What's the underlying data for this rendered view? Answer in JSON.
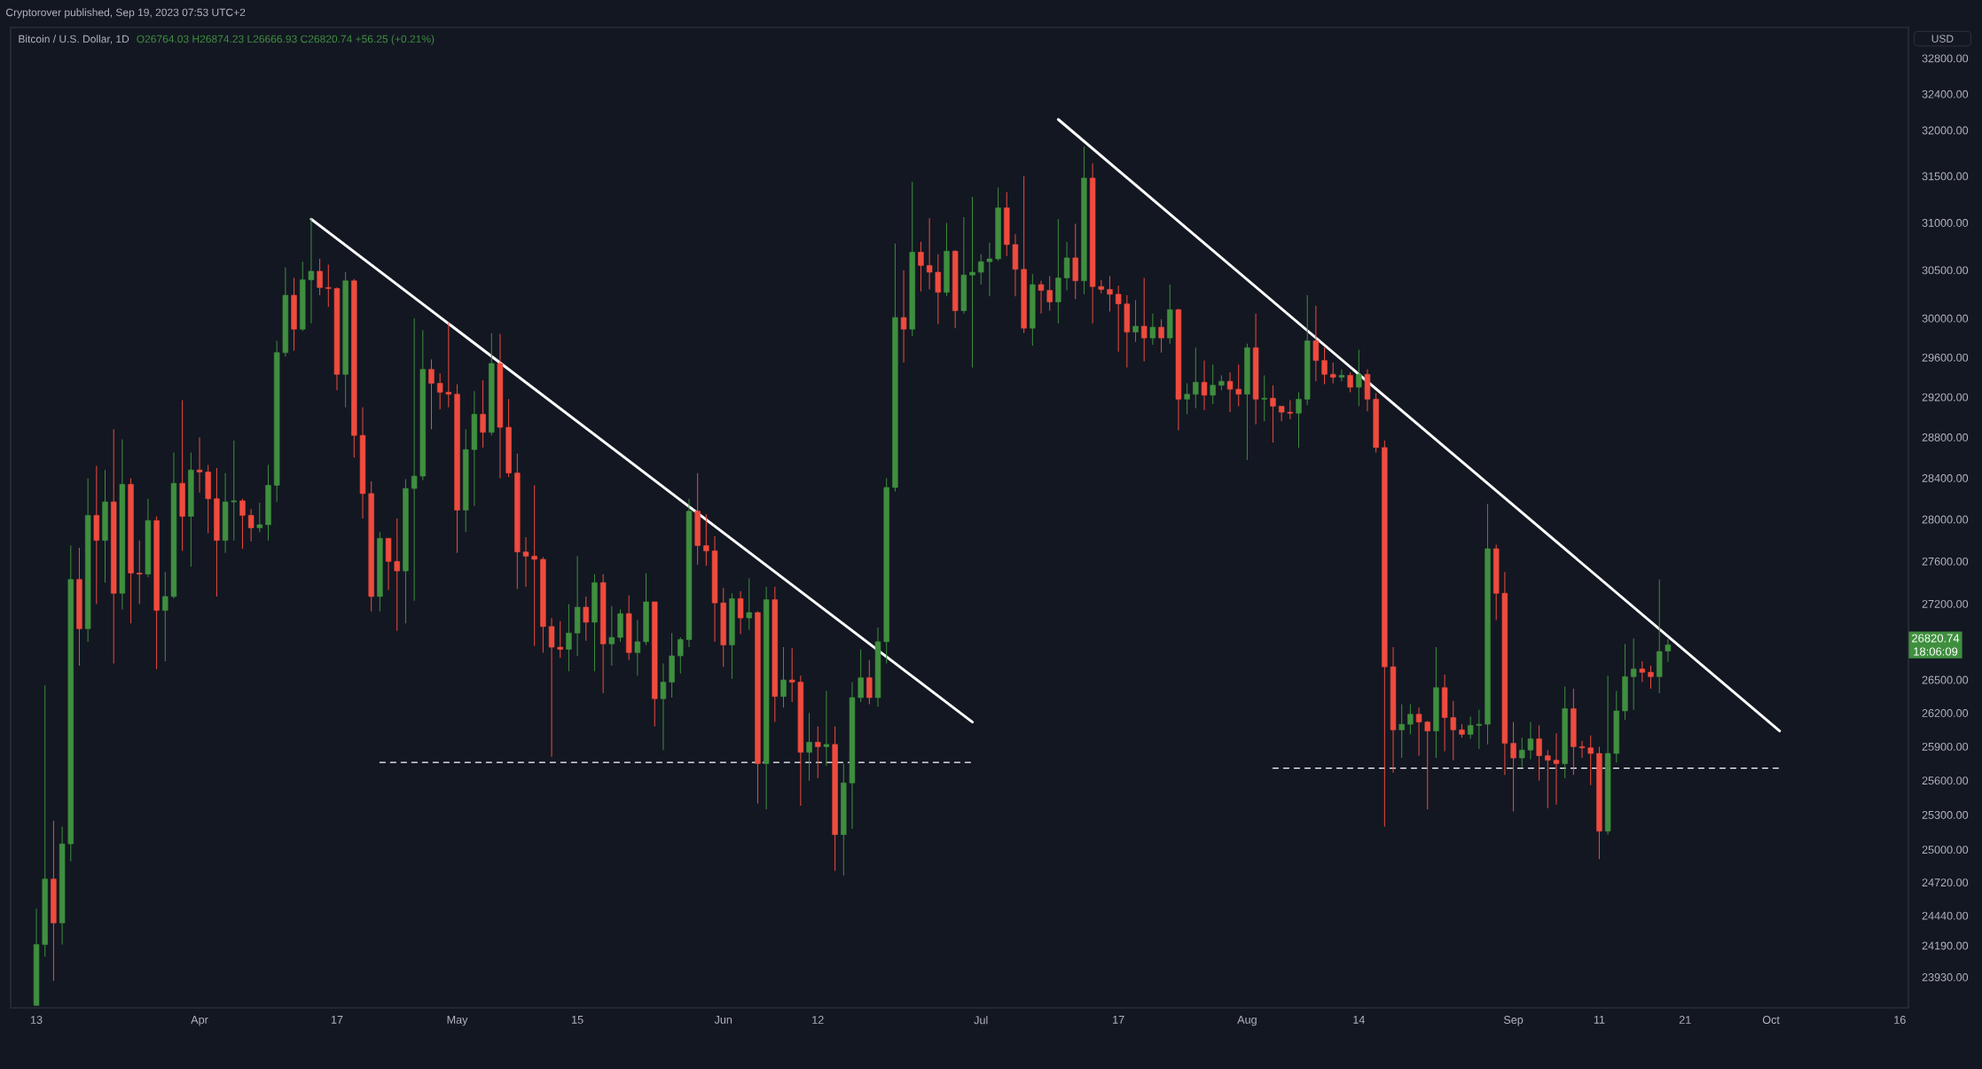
{
  "chart_data": {
    "type": "candlestick",
    "title": "Bitcoin / U.S. Dollar, 1D",
    "subtitle": "O26764.03 H26874.23 L26666.93 C26820.74 +56.25 (+0.21%)",
    "ylabel": "USD",
    "annotations": [
      "Cryptorover published, Sep 19, 2023 07:53 UTC+2",
      "26820.74",
      "18:06:09"
    ],
    "log": "y",
    "xlim": [
      "2023-03-10",
      "2023-10-17"
    ],
    "xticks": [
      {
        "value": "2023-03-13",
        "label": "13"
      },
      {
        "value": "2023-04-01",
        "label": "Apr"
      },
      {
        "value": "2023-04-17",
        "label": "17"
      },
      {
        "value": "2023-05-01",
        "label": "May"
      },
      {
        "value": "2023-05-15",
        "label": "15"
      },
      {
        "value": "2023-06-01",
        "label": "Jun"
      },
      {
        "value": "2023-06-12",
        "label": "12"
      },
      {
        "value": "2023-07-01",
        "label": "Jul"
      },
      {
        "value": "2023-07-17",
        "label": "17"
      },
      {
        "value": "2023-08-01",
        "label": "Aug"
      },
      {
        "value": "2023-08-14",
        "label": "14"
      },
      {
        "value": "2023-09-01",
        "label": "Sep"
      },
      {
        "value": "2023-09-11",
        "label": "11"
      },
      {
        "value": "2023-09-21",
        "label": "21"
      },
      {
        "value": "2023-10-01",
        "label": "Oct"
      },
      {
        "value": "2023-10-16",
        "label": "16"
      }
    ],
    "ylim": [
      23680,
      33150
    ],
    "yticks": [
      {
        "value": 23930,
        "label": "23930.00"
      },
      {
        "value": 24190,
        "label": "24190.00"
      },
      {
        "value": 24440,
        "label": "24440.00"
      },
      {
        "value": 24720,
        "label": "24720.00"
      },
      {
        "value": 25000,
        "label": "25000.00"
      },
      {
        "value": 25300,
        "label": "25300.00"
      },
      {
        "value": 25600,
        "label": "25600.00"
      },
      {
        "value": 25900,
        "label": "25900.00"
      },
      {
        "value": 26200,
        "label": "26200.00"
      },
      {
        "value": 26500,
        "label": "26500.00"
      },
      {
        "value": 27200,
        "label": "27200.00"
      },
      {
        "value": 27600,
        "label": "27600.00"
      },
      {
        "value": 28000,
        "label": "28000.00"
      },
      {
        "value": 28400,
        "label": "28400.00"
      },
      {
        "value": 28800,
        "label": "28800.00"
      },
      {
        "value": 29200,
        "label": "29200.00"
      },
      {
        "value": 29600,
        "label": "29600.00"
      },
      {
        "value": 30000,
        "label": "30000.00"
      },
      {
        "value": 30500,
        "label": "30500.00"
      },
      {
        "value": 31000,
        "label": "31000.00"
      },
      {
        "value": 31500,
        "label": "31500.00"
      },
      {
        "value": 32000,
        "label": "32000.00"
      },
      {
        "value": 32400,
        "label": "32400.00"
      },
      {
        "value": 32800,
        "label": "32800.00"
      }
    ],
    "x": [
      "2023-03-13",
      "2023-03-14",
      "2023-03-15",
      "2023-03-16",
      "2023-03-17",
      "2023-03-18",
      "2023-03-19",
      "2023-03-20",
      "2023-03-21",
      "2023-03-22",
      "2023-03-23",
      "2023-03-24",
      "2023-03-25",
      "2023-03-26",
      "2023-03-27",
      "2023-03-28",
      "2023-03-29",
      "2023-03-30",
      "2023-03-31",
      "2023-04-01",
      "2023-04-02",
      "2023-04-03",
      "2023-04-04",
      "2023-04-05",
      "2023-04-06",
      "2023-04-07",
      "2023-04-08",
      "2023-04-09",
      "2023-04-10",
      "2023-04-11",
      "2023-04-12",
      "2023-04-13",
      "2023-04-14",
      "2023-04-15",
      "2023-04-16",
      "2023-04-17",
      "2023-04-18",
      "2023-04-19",
      "2023-04-20",
      "2023-04-21",
      "2023-04-22",
      "2023-04-23",
      "2023-04-24",
      "2023-04-25",
      "2023-04-26",
      "2023-04-27",
      "2023-04-28",
      "2023-04-29",
      "2023-04-30",
      "2023-05-01",
      "2023-05-02",
      "2023-05-03",
      "2023-05-04",
      "2023-05-05",
      "2023-05-06",
      "2023-05-07",
      "2023-05-08",
      "2023-05-09",
      "2023-05-10",
      "2023-05-11",
      "2023-05-12",
      "2023-05-13",
      "2023-05-14",
      "2023-05-15",
      "2023-05-16",
      "2023-05-17",
      "2023-05-18",
      "2023-05-19",
      "2023-05-20",
      "2023-05-21",
      "2023-05-22",
      "2023-05-23",
      "2023-05-24",
      "2023-05-25",
      "2023-05-26",
      "2023-05-27",
      "2023-05-28",
      "2023-05-29",
      "2023-05-30",
      "2023-05-31",
      "2023-06-01",
      "2023-06-02",
      "2023-06-03",
      "2023-06-04",
      "2023-06-05",
      "2023-06-06",
      "2023-06-07",
      "2023-06-08",
      "2023-06-09",
      "2023-06-10",
      "2023-06-11",
      "2023-06-12",
      "2023-06-13",
      "2023-06-14",
      "2023-06-15",
      "2023-06-16",
      "2023-06-17",
      "2023-06-18",
      "2023-06-19",
      "2023-06-20",
      "2023-06-21",
      "2023-06-22",
      "2023-06-23",
      "2023-06-24",
      "2023-06-25",
      "2023-06-26",
      "2023-06-27",
      "2023-06-28",
      "2023-06-29",
      "2023-06-30",
      "2023-07-01",
      "2023-07-02",
      "2023-07-03",
      "2023-07-04",
      "2023-07-05",
      "2023-07-06",
      "2023-07-07",
      "2023-07-08",
      "2023-07-09",
      "2023-07-10",
      "2023-07-11",
      "2023-07-12",
      "2023-07-13",
      "2023-07-14",
      "2023-07-15",
      "2023-07-16",
      "2023-07-17",
      "2023-07-18",
      "2023-07-19",
      "2023-07-20",
      "2023-07-21",
      "2023-07-22",
      "2023-07-23",
      "2023-07-24",
      "2023-07-25",
      "2023-07-26",
      "2023-07-27",
      "2023-07-28",
      "2023-07-29",
      "2023-07-30",
      "2023-07-31",
      "2023-08-01",
      "2023-08-02",
      "2023-08-03",
      "2023-08-04",
      "2023-08-05",
      "2023-08-06",
      "2023-08-07",
      "2023-08-08",
      "2023-08-09",
      "2023-08-10",
      "2023-08-11",
      "2023-08-12",
      "2023-08-13",
      "2023-08-14",
      "2023-08-15",
      "2023-08-16",
      "2023-08-17",
      "2023-08-18",
      "2023-08-19",
      "2023-08-20",
      "2023-08-21",
      "2023-08-22",
      "2023-08-23",
      "2023-08-24",
      "2023-08-25",
      "2023-08-26",
      "2023-08-27",
      "2023-08-28",
      "2023-08-29",
      "2023-08-30",
      "2023-08-31",
      "2023-09-01",
      "2023-09-02",
      "2023-09-03",
      "2023-09-04",
      "2023-09-05",
      "2023-09-06",
      "2023-09-07",
      "2023-09-08",
      "2023-09-09",
      "2023-09-10",
      "2023-09-11",
      "2023-09-12",
      "2023-09-13",
      "2023-09-14",
      "2023-09-15",
      "2023-09-16",
      "2023-09-17",
      "2023-09-18",
      "2023-09-19"
    ],
    "ohlc": [
      [
        23700,
        24500,
        23700,
        24200
      ],
      [
        24200,
        26450,
        24100,
        24750
      ],
      [
        24750,
        25250,
        23900,
        24380
      ],
      [
        24380,
        25200,
        24200,
        25050
      ],
      [
        25050,
        27750,
        24900,
        27430
      ],
      [
        27430,
        27730,
        26630,
        26970
      ],
      [
        26970,
        28400,
        26850,
        28040
      ],
      [
        28040,
        28520,
        27200,
        27800
      ],
      [
        27800,
        28480,
        27400,
        28170
      ],
      [
        28170,
        28880,
        26650,
        27300
      ],
      [
        27300,
        28780,
        27150,
        28340
      ],
      [
        28340,
        28400,
        27020,
        27490
      ],
      [
        27490,
        27800,
        27200,
        27480
      ],
      [
        27480,
        28200,
        27450,
        27990
      ],
      [
        27990,
        28030,
        26600,
        27140
      ],
      [
        27140,
        27500,
        26670,
        27270
      ],
      [
        27270,
        28650,
        27250,
        28350
      ],
      [
        28350,
        29170,
        27700,
        28030
      ],
      [
        28030,
        28650,
        27550,
        28480
      ],
      [
        28480,
        28800,
        28260,
        28460
      ],
      [
        28460,
        28530,
        27870,
        28200
      ],
      [
        28200,
        28500,
        27270,
        27800
      ],
      [
        27800,
        28450,
        27680,
        28170
      ],
      [
        28170,
        28770,
        27800,
        28180
      ],
      [
        28180,
        28200,
        27720,
        28040
      ],
      [
        28040,
        28100,
        27790,
        27920
      ],
      [
        27920,
        28160,
        27880,
        27950
      ],
      [
        27950,
        28530,
        27800,
        28330
      ],
      [
        28330,
        29770,
        28170,
        29650
      ],
      [
        29650,
        30530,
        29610,
        30240
      ],
      [
        30240,
        30420,
        29670,
        29890
      ],
      [
        29890,
        30590,
        29870,
        30400
      ],
      [
        30400,
        31050,
        29950,
        30490
      ],
      [
        30490,
        30620,
        30240,
        30320
      ],
      [
        30320,
        30560,
        30120,
        30310
      ],
      [
        30310,
        30320,
        29270,
        29430
      ],
      [
        29430,
        30480,
        29100,
        30390
      ],
      [
        30390,
        30410,
        28600,
        28820
      ],
      [
        28820,
        29100,
        28010,
        28250
      ],
      [
        28250,
        28370,
        27130,
        27270
      ],
      [
        27270,
        27880,
        27130,
        27820
      ],
      [
        27820,
        27820,
        27330,
        27600
      ],
      [
        27600,
        28010,
        26950,
        27510
      ],
      [
        27510,
        28390,
        27020,
        28300
      ],
      [
        28300,
        30000,
        27230,
        28420
      ],
      [
        28420,
        29880,
        28380,
        29480
      ],
      [
        29480,
        29580,
        28880,
        29340
      ],
      [
        29340,
        29440,
        29080,
        29250
      ],
      [
        29250,
        29960,
        29100,
        29230
      ],
      [
        29230,
        29330,
        27680,
        28090
      ],
      [
        28090,
        28880,
        27880,
        28680
      ],
      [
        28680,
        29260,
        28130,
        29030
      ],
      [
        29030,
        29370,
        28700,
        28850
      ],
      [
        28850,
        29850,
        28820,
        29540
      ],
      [
        29540,
        29840,
        28400,
        28900
      ],
      [
        28900,
        29180,
        28410,
        28450
      ],
      [
        28450,
        28640,
        27340,
        27690
      ],
      [
        27690,
        27830,
        27360,
        27650
      ],
      [
        27650,
        28330,
        26810,
        27620
      ],
      [
        27620,
        27640,
        26750,
        26990
      ],
      [
        26990,
        27070,
        25810,
        26800
      ],
      [
        26800,
        27040,
        26700,
        26780
      ],
      [
        26780,
        27200,
        26580,
        26930
      ],
      [
        26930,
        27650,
        26720,
        27170
      ],
      [
        27170,
        27270,
        26860,
        27030
      ],
      [
        27030,
        27480,
        26580,
        27400
      ],
      [
        27400,
        27480,
        26380,
        26830
      ],
      [
        26830,
        27180,
        26630,
        26890
      ],
      [
        26890,
        27150,
        26850,
        27110
      ],
      [
        27110,
        27280,
        26680,
        26750
      ],
      [
        26750,
        27050,
        26540,
        26850
      ],
      [
        26850,
        27490,
        26820,
        27220
      ],
      [
        27220,
        27220,
        26080,
        26330
      ],
      [
        26330,
        26650,
        25870,
        26480
      ],
      [
        26480,
        26930,
        26340,
        26720
      ],
      [
        26720,
        26890,
        26560,
        26870
      ],
      [
        26870,
        28200,
        26800,
        28080
      ],
      [
        28080,
        28450,
        27570,
        27750
      ],
      [
        27750,
        28050,
        27560,
        27700
      ],
      [
        27700,
        27840,
        26850,
        27210
      ],
      [
        27210,
        27350,
        26620,
        26820
      ],
      [
        26820,
        27300,
        26510,
        27250
      ],
      [
        27250,
        27320,
        26920,
        27070
      ],
      [
        27070,
        27440,
        26960,
        27120
      ],
      [
        27120,
        27130,
        25400,
        25750
      ],
      [
        25750,
        27360,
        25350,
        27240
      ],
      [
        27240,
        27360,
        26120,
        26350
      ],
      [
        26350,
        26800,
        26250,
        26500
      ],
      [
        26500,
        26790,
        26300,
        26480
      ],
      [
        26480,
        26540,
        25380,
        25850
      ],
      [
        25850,
        26200,
        25600,
        25940
      ],
      [
        25940,
        26080,
        25620,
        25900
      ],
      [
        25900,
        26400,
        25730,
        25920
      ],
      [
        25920,
        26080,
        24820,
        25130
      ],
      [
        25130,
        25750,
        24780,
        25580
      ],
      [
        25580,
        26480,
        25180,
        26340
      ],
      [
        26340,
        26780,
        26300,
        26520
      ],
      [
        26520,
        26680,
        26280,
        26340
      ],
      [
        26340,
        26980,
        26260,
        26850
      ],
      [
        26850,
        28400,
        26650,
        28310
      ],
      [
        28310,
        30780,
        28270,
        30010
      ],
      [
        30010,
        30500,
        29550,
        29890
      ],
      [
        29890,
        31440,
        29820,
        30690
      ],
      [
        30690,
        30800,
        30280,
        30550
      ],
      [
        30550,
        31050,
        30300,
        30480
      ],
      [
        30480,
        30670,
        29940,
        30270
      ],
      [
        30270,
        31000,
        30230,
        30700
      ],
      [
        30700,
        30710,
        29900,
        30080
      ],
      [
        30080,
        31060,
        30050,
        30450
      ],
      [
        30450,
        31280,
        29500,
        30480
      ],
      [
        30480,
        30670,
        30350,
        30590
      ],
      [
        30590,
        30790,
        30230,
        30620
      ],
      [
        30620,
        31380,
        30600,
        31160
      ],
      [
        31160,
        31330,
        30650,
        30770
      ],
      [
        30770,
        30880,
        30230,
        30510
      ],
      [
        30510,
        31500,
        29850,
        29900
      ],
      [
        29900,
        30460,
        29720,
        30350
      ],
      [
        30350,
        30390,
        30050,
        30290
      ],
      [
        30290,
        30440,
        30080,
        30170
      ],
      [
        30170,
        31040,
        29950,
        30420
      ],
      [
        30420,
        30800,
        30290,
        30630
      ],
      [
        30630,
        30990,
        30200,
        30390
      ],
      [
        30390,
        31820,
        30250,
        31480
      ],
      [
        31480,
        31640,
        29950,
        30330
      ],
      [
        30330,
        30400,
        30260,
        30300
      ],
      [
        30300,
        30440,
        30070,
        30250
      ],
      [
        30250,
        30340,
        29660,
        30150
      ],
      [
        30150,
        30240,
        29500,
        29860
      ],
      [
        29860,
        30190,
        29760,
        29920
      ],
      [
        29920,
        30420,
        29560,
        29800
      ],
      [
        29800,
        30050,
        29730,
        29910
      ],
      [
        29910,
        29990,
        29650,
        29800
      ],
      [
        29800,
        30350,
        29740,
        30090
      ],
      [
        30090,
        30100,
        28870,
        29180
      ],
      [
        29180,
        29340,
        29030,
        29230
      ],
      [
        29230,
        29700,
        29090,
        29350
      ],
      [
        29350,
        29570,
        29070,
        29220
      ],
      [
        29220,
        29530,
        29130,
        29320
      ],
      [
        29320,
        29420,
        29270,
        29360
      ],
      [
        29360,
        29450,
        29050,
        29280
      ],
      [
        29280,
        29530,
        29110,
        29230
      ],
      [
        29230,
        29740,
        28580,
        29700
      ],
      [
        29700,
        30050,
        28930,
        29180
      ],
      [
        29180,
        29420,
        28960,
        29190
      ],
      [
        29190,
        29320,
        28750,
        29110
      ],
      [
        29110,
        29110,
        28960,
        29050
      ],
      [
        29050,
        29170,
        28980,
        29040
      ],
      [
        29040,
        29250,
        28700,
        29180
      ],
      [
        29180,
        30240,
        29120,
        29770
      ],
      [
        29770,
        30130,
        29360,
        29570
      ],
      [
        29570,
        29700,
        29330,
        29430
      ],
      [
        29430,
        29550,
        29340,
        29400
      ],
      [
        29400,
        29480,
        29360,
        29420
      ],
      [
        29420,
        29450,
        29250,
        29300
      ],
      [
        29300,
        29680,
        29110,
        29430
      ],
      [
        29430,
        29480,
        29060,
        29180
      ],
      [
        29180,
        29240,
        28650,
        28700
      ],
      [
        28700,
        28770,
        25200,
        26620
      ],
      [
        26620,
        26800,
        25670,
        26050
      ],
      [
        26050,
        26280,
        25800,
        26100
      ],
      [
        26100,
        26280,
        26010,
        26190
      ],
      [
        26190,
        26250,
        25820,
        26120
      ],
      [
        26120,
        26130,
        25350,
        26040
      ],
      [
        26040,
        26800,
        25800,
        26430
      ],
      [
        26430,
        26550,
        25860,
        26160
      ],
      [
        26160,
        26310,
        25780,
        26050
      ],
      [
        26050,
        26100,
        25980,
        26010
      ],
      [
        26010,
        26170,
        25970,
        26090
      ],
      [
        26090,
        26230,
        25880,
        26100
      ],
      [
        26100,
        28150,
        25920,
        27720
      ],
      [
        27720,
        27760,
        27050,
        27300
      ],
      [
        27300,
        27500,
        25650,
        25930
      ],
      [
        25930,
        26120,
        25330,
        25800
      ],
      [
        25800,
        25980,
        25720,
        25870
      ],
      [
        25870,
        26120,
        25790,
        25970
      ],
      [
        25970,
        26090,
        25600,
        25820
      ],
      [
        25820,
        25870,
        25360,
        25780
      ],
      [
        25780,
        26020,
        25390,
        25750
      ],
      [
        25750,
        26440,
        25620,
        26240
      ],
      [
        26240,
        26420,
        25650,
        25900
      ],
      [
        25900,
        25950,
        25800,
        25890
      ],
      [
        25890,
        26000,
        25560,
        25840
      ],
      [
        25840,
        25900,
        24920,
        25160
      ],
      [
        25160,
        26540,
        25130,
        25840
      ],
      [
        25840,
        26400,
        25760,
        26220
      ],
      [
        26220,
        26830,
        26140,
        26530
      ],
      [
        26530,
        26880,
        26230,
        26600
      ],
      [
        26600,
        26670,
        26480,
        26570
      ],
      [
        26570,
        26630,
        26420,
        26530
      ],
      [
        26530,
        27430,
        26380,
        26760
      ],
      [
        26764.03,
        26874.23,
        26666.93,
        26820.74
      ]
    ],
    "colors": [
      "#3f8f3f",
      "#3f8f3f",
      "#ef4b3e",
      "#3f8f3f",
      "#3f8f3f",
      "#ef4b3e",
      "#3f8f3f",
      "#ef4b3e",
      "#3f8f3f",
      "#ef4b3e",
      "#3f8f3f",
      "#ef4b3e",
      "#ef4b3e",
      "#3f8f3f",
      "#ef4b3e",
      "#3f8f3f",
      "#3f8f3f",
      "#ef4b3e",
      "#3f8f3f",
      "#ef4b3e",
      "#ef4b3e",
      "#ef4b3e",
      "#3f8f3f",
      "#3f8f3f",
      "#ef4b3e",
      "#ef4b3e",
      "#3f8f3f",
      "#3f8f3f",
      "#3f8f3f",
      "#3f8f3f",
      "#ef4b3e",
      "#3f8f3f",
      "#3f8f3f",
      "#ef4b3e",
      "#ef4b3e",
      "#ef4b3e",
      "#3f8f3f",
      "#ef4b3e",
      "#ef4b3e",
      "#ef4b3e",
      "#3f8f3f",
      "#ef4b3e",
      "#ef4b3e",
      "#3f8f3f",
      "#3f8f3f",
      "#3f8f3f",
      "#ef4b3e",
      "#ef4b3e",
      "#ef4b3e",
      "#ef4b3e",
      "#3f8f3f",
      "#3f8f3f",
      "#ef4b3e",
      "#3f8f3f",
      "#ef4b3e",
      "#ef4b3e",
      "#ef4b3e",
      "#ef4b3e",
      "#ef4b3e",
      "#ef4b3e",
      "#ef4b3e",
      "#ef4b3e",
      "#3f8f3f",
      "#3f8f3f",
      "#ef4b3e",
      "#3f8f3f",
      "#ef4b3e",
      "#3f8f3f",
      "#3f8f3f",
      "#ef4b3e",
      "#3f8f3f",
      "#3f8f3f",
      "#ef4b3e",
      "#3f8f3f",
      "#3f8f3f",
      "#3f8f3f",
      "#3f8f3f",
      "#ef4b3e",
      "#ef4b3e",
      "#ef4b3e",
      "#ef4b3e",
      "#3f8f3f",
      "#ef4b3e",
      "#3f8f3f",
      "#ef4b3e",
      "#3f8f3f",
      "#ef4b3e",
      "#3f8f3f",
      "#ef4b3e",
      "#ef4b3e",
      "#3f8f3f",
      "#ef4b3e",
      "#3f8f3f",
      "#ef4b3e",
      "#3f8f3f",
      "#3f8f3f",
      "#3f8f3f",
      "#ef4b3e",
      "#3f8f3f",
      "#3f8f3f",
      "#3f8f3f",
      "#ef4b3e",
      "#3f8f3f",
      "#ef4b3e",
      "#ef4b3e",
      "#ef4b3e",
      "#3f8f3f",
      "#ef4b3e",
      "#3f8f3f",
      "#3f8f3f",
      "#3f8f3f",
      "#3f8f3f",
      "#3f8f3f",
      "#ef4b3e",
      "#ef4b3e",
      "#ef4b3e",
      "#3f8f3f",
      "#ef4b3e",
      "#ef4b3e",
      "#3f8f3f",
      "#3f8f3f",
      "#ef4b3e",
      "#3f8f3f",
      "#ef4b3e",
      "#ef4b3e",
      "#ef4b3e",
      "#ef4b3e",
      "#ef4b3e",
      "#3f8f3f",
      "#ef4b3e",
      "#3f8f3f",
      "#ef4b3e",
      "#3f8f3f",
      "#ef4b3e",
      "#3f8f3f",
      "#3f8f3f",
      "#ef4b3e",
      "#3f8f3f",
      "#3f8f3f",
      "#ef4b3e",
      "#ef4b3e",
      "#3f8f3f",
      "#ef4b3e",
      "#3f8f3f",
      "#ef4b3e",
      "#ef4b3e",
      "#ef4b3e",
      "#3f8f3f",
      "#3f8f3f",
      "#ef4b3e",
      "#ef4b3e",
      "#ef4b3e",
      "#3f8f3f",
      "#ef4b3e",
      "#3f8f3f",
      "#ef4b3e",
      "#ef4b3e",
      "#ef4b3e",
      "#ef4b3e",
      "#3f8f3f",
      "#3f8f3f",
      "#ef4b3e",
      "#ef4b3e",
      "#3f8f3f",
      "#ef4b3e",
      "#ef4b3e",
      "#ef4b3e",
      "#3f8f3f",
      "#3f8f3f",
      "#3f8f3f",
      "#ef4b3e",
      "#ef4b3e",
      "#ef4b3e",
      "#3f8f3f",
      "#3f8f3f",
      "#ef4b3e",
      "#ef4b3e",
      "#ef4b3e",
      "#3f8f3f",
      "#ef4b3e",
      "#ef4b3e",
      "#ef4b3e",
      "#ef4b3e",
      "#3f8f3f",
      "#3f8f3f",
      "#3f8f3f",
      "#3f8f3f",
      "#ef4b3e",
      "#ef4b3e",
      "#3f8f3f",
      "#3f8f3f"
    ],
    "series": [
      {
        "type": "line",
        "x": [
          "2023-04-14",
          "2023-06-30"
        ],
        "values": [
          31040,
          26120
        ],
        "color": "#ffffff",
        "line_style": "solid"
      },
      {
        "type": "line",
        "x": [
          "2023-07-10",
          "2023-10-02"
        ],
        "values": [
          32120,
          26040
        ],
        "color": "#ffffff",
        "line_style": "solid"
      },
      {
        "type": "line",
        "x": [
          "2023-04-22",
          "2023-06-30"
        ],
        "values": [
          25760,
          25760
        ],
        "color": "#ffffff",
        "line_style": "dashed"
      },
      {
        "type": "line",
        "x": [
          "2023-08-04",
          "2023-10-02"
        ],
        "values": [
          25710,
          25710
        ],
        "color": "#ffffff",
        "line_style": "dashed"
      }
    ]
  }
}
